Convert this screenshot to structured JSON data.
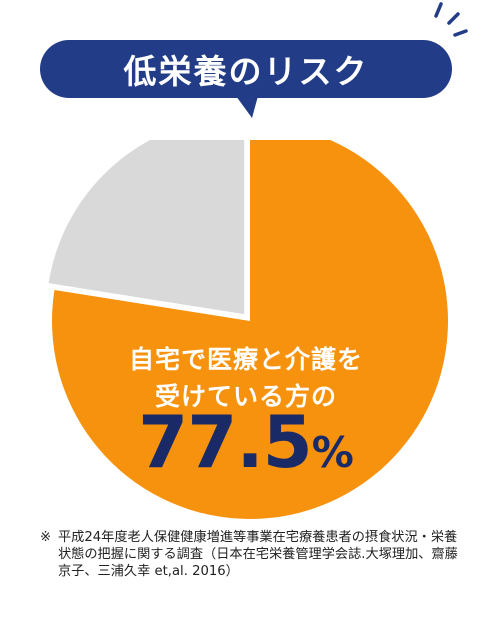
{
  "title": "低栄養のリスク",
  "colors": {
    "navy": "#233c87",
    "orange": "#f7920e",
    "gray": "#d9d9d9",
    "value_text": "#1a2a66"
  },
  "chart_data": {
    "type": "pie",
    "values": [
      77.5,
      22.5
    ],
    "colors": [
      "#f7920e",
      "#d9d9d9"
    ],
    "start_angle_deg": 0,
    "direction": "clockwise",
    "exploded_index": 1,
    "label_line1": "自宅で医療と介護を",
    "label_line2": "受けている方の",
    "value_text": "77.5",
    "unit": "%"
  },
  "note": {
    "mark": "※",
    "text": "平成24年度老人保健健康増進等事業在宅療養患者の摂食状況・栄養状態の把握に関する調査（日本在宅栄養管理学会誌.大塚理加、齋藤京子、三浦久幸 et,al. 2016）"
  }
}
